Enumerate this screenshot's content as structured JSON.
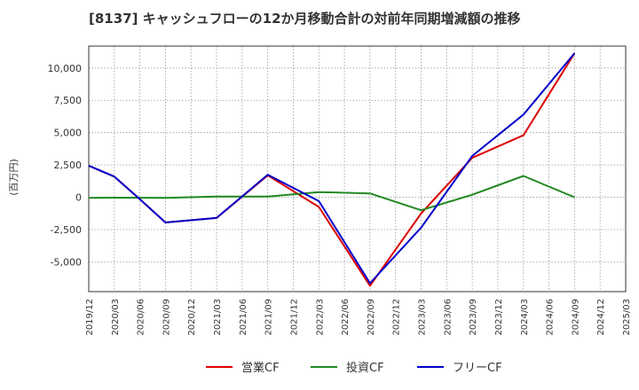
{
  "chart_data": {
    "type": "line",
    "title": "[8137]  キャッシュフローの12か月移動合計の対前年同期増減額の推移",
    "ylabel": "(百万円)",
    "ylim": [
      -7300,
      11700
    ],
    "yticks": [
      -5000,
      -2500,
      0,
      2500,
      5000,
      7500,
      10000
    ],
    "ytick_labels": [
      "-5,000",
      "-2,500",
      "0",
      "2,500",
      "5,000",
      "7,500",
      "10,000"
    ],
    "categories": [
      "2019/12",
      "2020/03",
      "2020/06",
      "2020/09",
      "2020/12",
      "2021/03",
      "2021/06",
      "2021/09",
      "2021/12",
      "2022/03",
      "2022/06",
      "2022/09",
      "2022/12",
      "2023/03",
      "2023/06",
      "2023/09",
      "2023/12",
      "2024/03",
      "2024/06",
      "2024/09",
      "2024/12",
      "2025/03"
    ],
    "grid": true,
    "legend_position": "bottom",
    "series": [
      {
        "name": "営業CF",
        "color": "#dd0000",
        "values": [
          2450,
          1600,
          -150,
          -1950,
          null,
          -1600,
          null,
          1700,
          null,
          -750,
          null,
          -6850,
          null,
          -1250,
          null,
          3050,
          null,
          4800,
          null,
          11150,
          null,
          null
        ]
      },
      {
        "name": "投資CF",
        "color": "#228822",
        "values": [
          -50,
          -30,
          null,
          -50,
          null,
          50,
          null,
          50,
          null,
          400,
          null,
          300,
          null,
          -1000,
          null,
          200,
          null,
          1650,
          null,
          0,
          null,
          null
        ]
      },
      {
        "name": "フリーCF",
        "color": "#0000cc",
        "values": [
          2450,
          1600,
          -150,
          -1950,
          null,
          -1600,
          null,
          1750,
          null,
          -300,
          null,
          -6650,
          null,
          -2350,
          null,
          3200,
          null,
          6400,
          null,
          11150,
          null,
          null
        ]
      }
    ]
  }
}
